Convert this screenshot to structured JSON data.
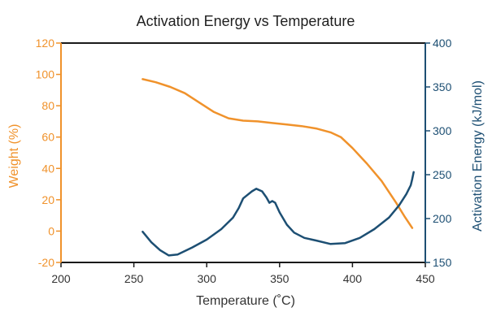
{
  "chart_data": {
    "type": "line",
    "title": "Activation Energy vs Temperature",
    "xlabel": "Temperature (˚C)",
    "ylabel_left": "Weight (%)",
    "ylabel_right": "Activation Energy (kJ/mol)",
    "xlim": [
      200,
      450
    ],
    "ylim_left": [
      -20,
      120
    ],
    "ylim_right": [
      150,
      400
    ],
    "x_ticks": [
      "200",
      "250",
      "300",
      "350",
      "400",
      "450"
    ],
    "y_left_ticks": [
      "-20",
      "0",
      "20",
      "40",
      "60",
      "80",
      "100",
      "120"
    ],
    "y_right_ticks": [
      "150",
      "200",
      "250",
      "300",
      "350",
      "400"
    ],
    "grid": false,
    "colors": {
      "weight": "#f0922b",
      "activation": "#1d4f73",
      "frame": "#1a1a1a"
    },
    "series": [
      {
        "axis": "left",
        "points": [
          [
            256,
            97
          ],
          [
            265,
            95
          ],
          [
            275,
            92
          ],
          [
            285,
            88
          ],
          [
            295,
            82
          ],
          [
            305,
            76
          ],
          [
            315,
            72
          ],
          [
            325,
            70.5
          ],
          [
            335,
            70
          ],
          [
            345,
            69
          ],
          [
            355,
            68
          ],
          [
            365,
            67
          ],
          [
            375,
            65.5
          ],
          [
            385,
            63
          ],
          [
            392,
            60
          ],
          [
            400,
            53
          ],
          [
            410,
            43
          ],
          [
            420,
            32
          ],
          [
            430,
            18
          ],
          [
            436,
            9
          ],
          [
            441,
            2
          ]
        ]
      },
      {
        "axis": "right",
        "points": [
          [
            256,
            185
          ],
          [
            262,
            173
          ],
          [
            268,
            164
          ],
          [
            274,
            158
          ],
          [
            280,
            159
          ],
          [
            290,
            167
          ],
          [
            300,
            176
          ],
          [
            310,
            188
          ],
          [
            318,
            201
          ],
          [
            322,
            212
          ],
          [
            325,
            223
          ],
          [
            328,
            227
          ],
          [
            331,
            231
          ],
          [
            334,
            234
          ],
          [
            338,
            231
          ],
          [
            341,
            224
          ],
          [
            343,
            218
          ],
          [
            345,
            220
          ],
          [
            347,
            218
          ],
          [
            350,
            207
          ],
          [
            355,
            193
          ],
          [
            360,
            184
          ],
          [
            367,
            178
          ],
          [
            375,
            175
          ],
          [
            385,
            171
          ],
          [
            395,
            172
          ],
          [
            405,
            178
          ],
          [
            415,
            188
          ],
          [
            425,
            201
          ],
          [
            432,
            215
          ],
          [
            437,
            228
          ],
          [
            440,
            238
          ],
          [
            441,
            245
          ],
          [
            442,
            253
          ]
        ]
      }
    ]
  }
}
